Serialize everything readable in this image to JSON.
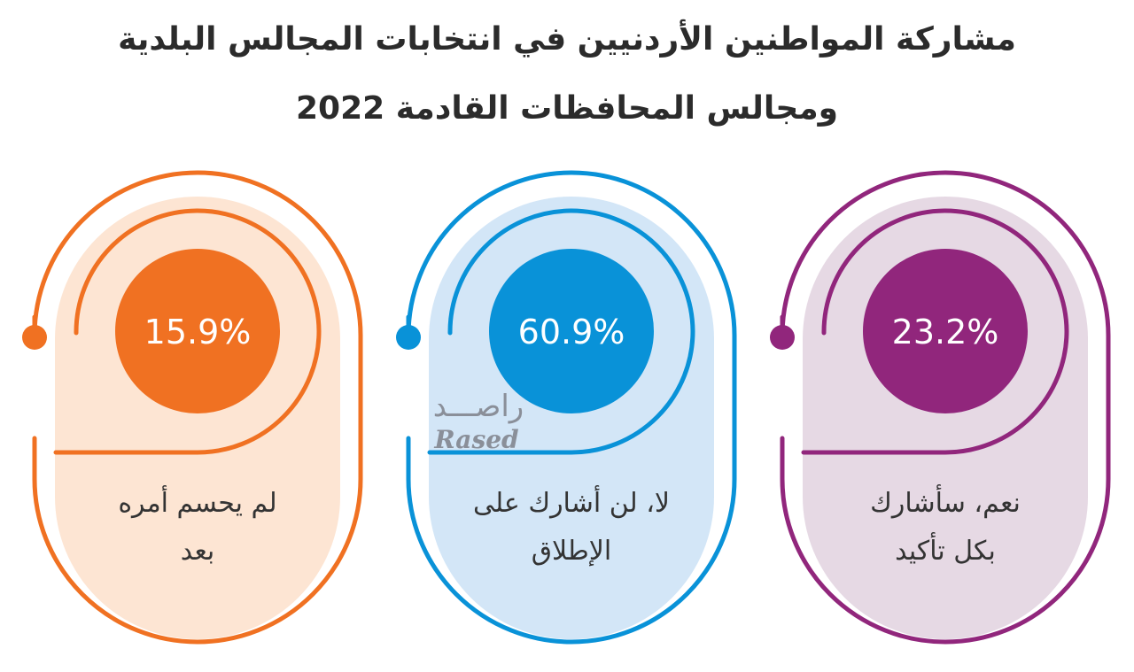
{
  "title_lines": [
    "مشاركة المواطنين الأردنيين في انتخابات المجالس البلدية",
    "ومجالس المحافظات القادمة 2022"
  ],
  "watermark": {
    "arabic": "راصـــد",
    "latin": "Rased"
  },
  "colors": {
    "orange": "#f07122",
    "orange_bg": "#fde5d3",
    "blue": "#0992d8",
    "blue_bg": "#d3e6f7",
    "purple": "#91267c",
    "purple_bg": "#e6d9e4"
  },
  "chart_data": {
    "type": "bar",
    "categories": [
      "لم يحسم أمره بعد",
      "لا، لن أشارك على الإطلاق",
      "نعم، سأشارك بكل تأكيد"
    ],
    "values": [
      15.9,
      60.9,
      23.2
    ],
    "value_labels": [
      "15.9%",
      "60.9%",
      "23.2%"
    ],
    "category_lines": [
      [
        "لم يحسم أمره",
        "بعد"
      ],
      [
        "لا، لن أشارك على",
        "الإطلاق"
      ],
      [
        "نعم، سأشارك",
        "بكل تأكيد"
      ]
    ],
    "series_colors": [
      "#f07122",
      "#0992d8",
      "#91267c"
    ]
  }
}
